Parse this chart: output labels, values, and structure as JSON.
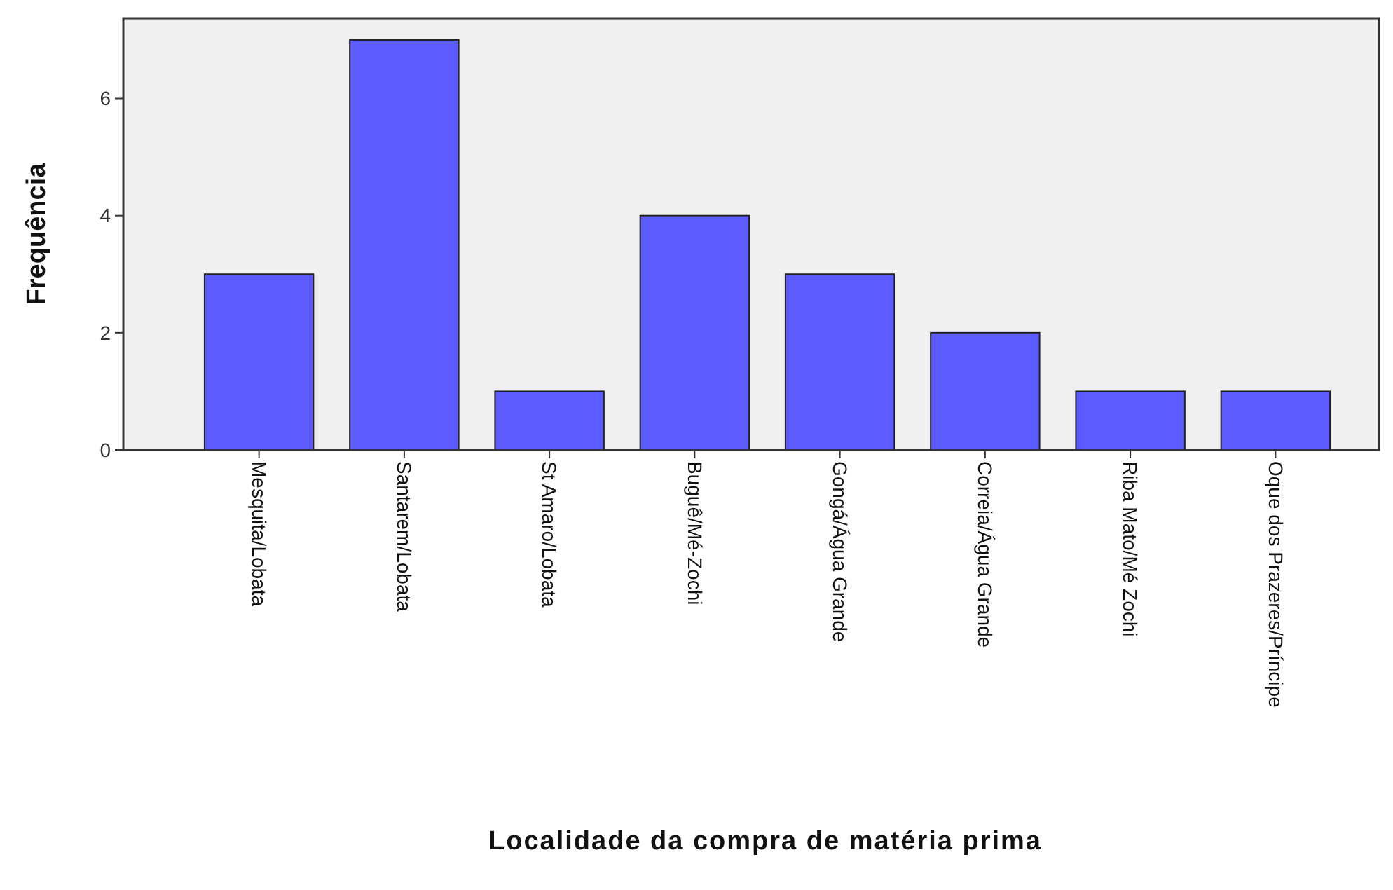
{
  "chart_data": {
    "type": "bar",
    "xlabel": "Localidade da compra de matéria prima",
    "ylabel": "Frequência",
    "categories": [
      "Mesquita/Lobata",
      "Santarem/Lobata",
      "St Amaro/Lobata",
      "Buguê/Mé-Zochi",
      "Gongá/Água Grande",
      "Correia/Água Grande",
      "Riba Mato/Mé Zochi",
      "Oque dos Prazeres/Príncipe"
    ],
    "values": [
      3,
      7,
      1,
      4,
      3,
      2,
      1,
      1
    ],
    "color": "#5b5bff",
    "ylim": [
      0,
      7.37
    ],
    "yticks": [
      0,
      2,
      4,
      6
    ],
    "grid": false
  }
}
